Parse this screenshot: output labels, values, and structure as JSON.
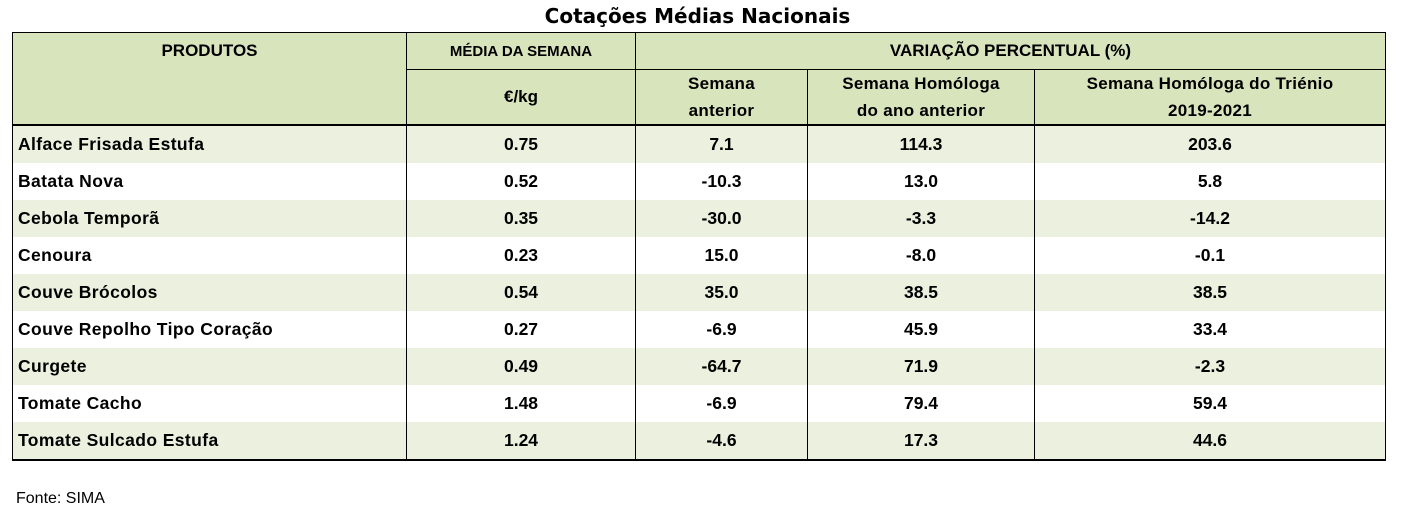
{
  "title": "Cotações Médias Nacionais",
  "headers": {
    "produtos": "PRODUTOS",
    "media_semana": "MÉDIA DA SEMANA",
    "unit": "€/kg",
    "variacao": "VARIAÇÃO PERCENTUAL (%)",
    "semana_anterior_l1": "Semana",
    "semana_anterior_l2": "anterior",
    "homologa_l1": "Semana Homóloga",
    "homologa_l2": "do ano anterior",
    "trienio_l1": "Semana Homóloga do Triénio",
    "trienio_l2": "2019-2021"
  },
  "rows": [
    {
      "produto": "Alface Frisada Estufa",
      "media": "0.75",
      "anterior": "7.1",
      "homologa": "114.3",
      "trienio": "203.6"
    },
    {
      "produto": "Batata Nova",
      "media": "0.52",
      "anterior": "-10.3",
      "homologa": "13.0",
      "trienio": "5.8"
    },
    {
      "produto": "Cebola Temporã",
      "media": "0.35",
      "anterior": "-30.0",
      "homologa": "-3.3",
      "trienio": "-14.2"
    },
    {
      "produto": "Cenoura",
      "media": "0.23",
      "anterior": "15.0",
      "homologa": "-8.0",
      "trienio": "-0.1"
    },
    {
      "produto": "Couve Brócolos",
      "media": "0.54",
      "anterior": "35.0",
      "homologa": "38.5",
      "trienio": "38.5"
    },
    {
      "produto": "Couve Repolho Tipo Coração",
      "media": "0.27",
      "anterior": "-6.9",
      "homologa": "45.9",
      "trienio": "33.4"
    },
    {
      "produto": "Curgete",
      "media": "0.49",
      "anterior": "-64.7",
      "homologa": "71.9",
      "trienio": "-2.3"
    },
    {
      "produto": "Tomate Cacho",
      "media": "1.48",
      "anterior": "-6.9",
      "homologa": "79.4",
      "trienio": "59.4"
    },
    {
      "produto": "Tomate Sulcado Estufa",
      "media": "1.24",
      "anterior": "-4.6",
      "homologa": "17.3",
      "trienio": "44.6"
    }
  ],
  "source": "Fonte: SIMA",
  "colors": {
    "header_bg": "#d8e4bc",
    "band_bg": "#ebf1de"
  }
}
